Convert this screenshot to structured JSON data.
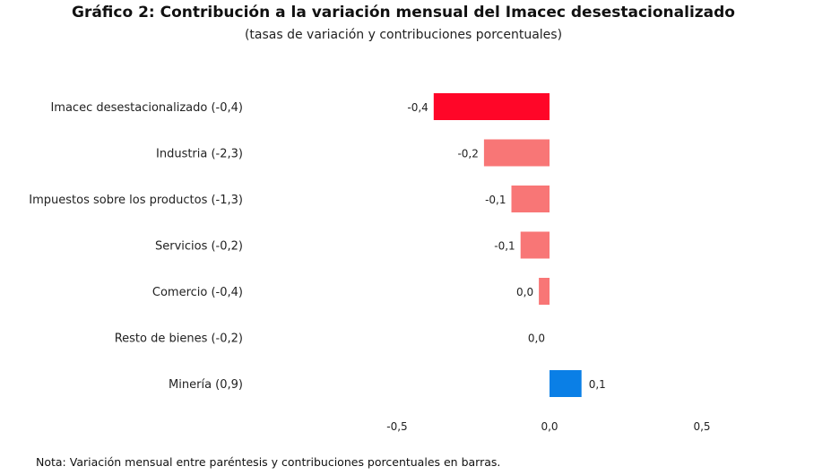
{
  "chart_data": {
    "type": "bar",
    "orientation": "horizontal",
    "title": "Gráfico 2: Contribución a la variación mensual del Imacec desestacionalizado",
    "subtitle": "(tasas de variación y contribuciones porcentuales)",
    "categories": [
      "Imacec desestacionalizado (-0,4)",
      "Industria (-2,3)",
      "Impuestos sobre los productos (-1,3)",
      "Servicios (-0,2)",
      "Comercio (-0,4)",
      "Resto de bienes (-0,2)",
      "Minería (0,9)"
    ],
    "values": [
      -0.38,
      -0.215,
      -0.125,
      -0.095,
      -0.035,
      0.0,
      0.105
    ],
    "data_labels": [
      "-0,4",
      "-0,2",
      "-0,1",
      "-0,1",
      "0,0",
      "0,0",
      "0,1"
    ],
    "colors": [
      "#ff0628",
      "#f87676",
      "#f87676",
      "#f87676",
      "#f87676",
      "#f87676",
      "#0a7fe6"
    ],
    "xlim": [
      -0.5,
      0.5
    ],
    "x_ticks": [
      -0.5,
      0.0,
      0.5
    ],
    "x_tick_labels": [
      "-0,5",
      "0,0",
      "0,5"
    ],
    "grid": false,
    "legend": "none"
  },
  "note": "Nota: Variación mensual entre paréntesis y contribuciones porcentuales en barras."
}
